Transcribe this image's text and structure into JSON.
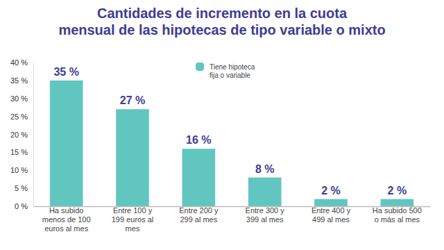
{
  "chart_data": {
    "type": "bar",
    "title": "Cantidades de incremento en la cuota mensual de las hipotecas de tipo variable o mixto",
    "categories": [
      "Ha subido menos de 100 euros al mes",
      "Entre 100 y 199 euros al mes",
      "Entre 200 y 299 al mes",
      "Entre 300 y 399 al mes",
      "Entre 400 y 499 al mes",
      "Ha subido 500 o más al mes"
    ],
    "series": [
      {
        "name": "Tiene hipoteca fija o variable",
        "color": "#62c6c0",
        "values": [
          35,
          27,
          16,
          8,
          2,
          2
        ],
        "value_labels": [
          "35 %",
          "27 %",
          "16 %",
          "8 %",
          "2 %",
          "2 %"
        ]
      }
    ],
    "ylim": [
      0,
      40
    ],
    "yticks": [
      {
        "value": 0,
        "label": "0 %"
      },
      {
        "value": 5,
        "label": "5 %"
      },
      {
        "value": 10,
        "label": "10 %"
      },
      {
        "value": 15,
        "label": "15 %"
      },
      {
        "value": 20,
        "label": "20 %"
      },
      {
        "value": 25,
        "label": "25 %"
      },
      {
        "value": 30,
        "label": "30 %"
      },
      {
        "value": 35,
        "label": "35 %"
      },
      {
        "value": 40,
        "label": "40 %"
      }
    ],
    "grid": false,
    "legend": "top",
    "data_labels": true
  }
}
